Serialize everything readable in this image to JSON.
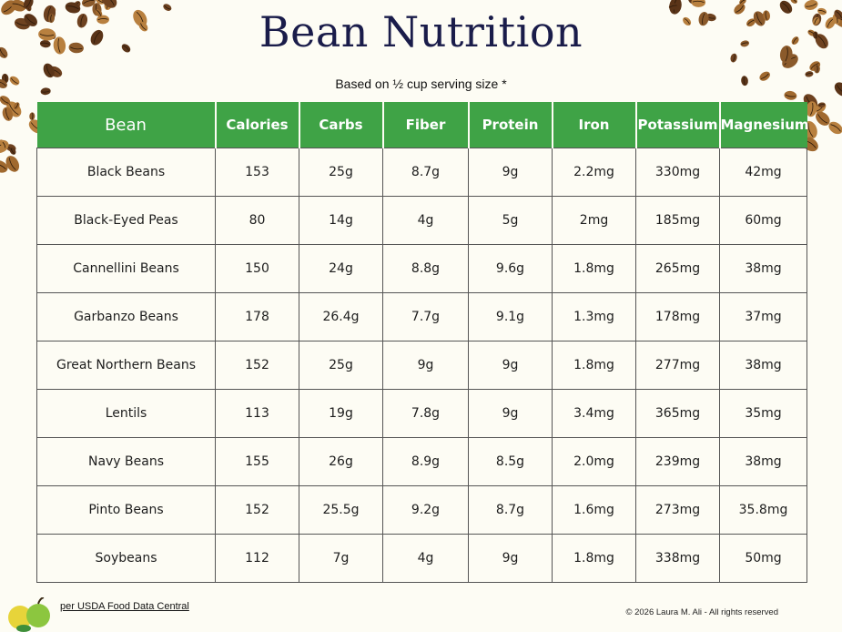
{
  "title": "Bean Nutrition",
  "subtitle": "Based on ½ cup serving size *",
  "columns": [
    "Bean",
    "Calories",
    "Carbs",
    "Fiber",
    "Protein",
    "Iron",
    "Potassium",
    "Magnesium"
  ],
  "rows": [
    [
      "Black Beans",
      "153",
      "25g",
      "8.7g",
      "9g",
      "2.2mg",
      "330mg",
      "42mg"
    ],
    [
      "Black-Eyed Peas",
      "80",
      "14g",
      "4g",
      "5g",
      "2mg",
      "185mg",
      "60mg"
    ],
    [
      "Cannellini Beans",
      "150",
      "24g",
      "8.8g",
      "9.6g",
      "1.8mg",
      "265mg",
      "38mg"
    ],
    [
      "Garbanzo Beans",
      "178",
      "26.4g",
      "7.7g",
      "9.1g",
      "1.3mg",
      "178mg",
      "37mg"
    ],
    [
      "Great Northern Beans",
      "152",
      "25g",
      "9g",
      "9g",
      "1.8mg",
      "277mg",
      "38mg"
    ],
    [
      "Lentils",
      "113",
      "19g",
      "7.8g",
      "9g",
      "3.4mg",
      "365mg",
      "35mg"
    ],
    [
      "Navy Beans",
      "155",
      "26g",
      "8.9g",
      "8.5g",
      "2.0mg",
      "239mg",
      "38mg"
    ],
    [
      "Pinto Beans",
      "152",
      "25.5g",
      "9.2g",
      "8.7g",
      "1.6mg",
      "273mg",
      "35.8mg"
    ],
    [
      "Soybeans",
      "112",
      "7g",
      "4g",
      "9g",
      "1.8mg",
      "338mg",
      "50mg"
    ]
  ],
  "footer": {
    "source": "per USDA Food Data Central",
    "copyright": "© 2026 Laura M. Ali - All rights reserved"
  },
  "colors": {
    "header_green": "#3fa346",
    "title_navy": "#1a1c4a",
    "background": "#fdfcf4",
    "bean_brown": "#8b5a2b"
  },
  "icons": [
    "coffee-beans-decoration-left",
    "coffee-beans-decoration-right",
    "apple-logo-icon"
  ]
}
